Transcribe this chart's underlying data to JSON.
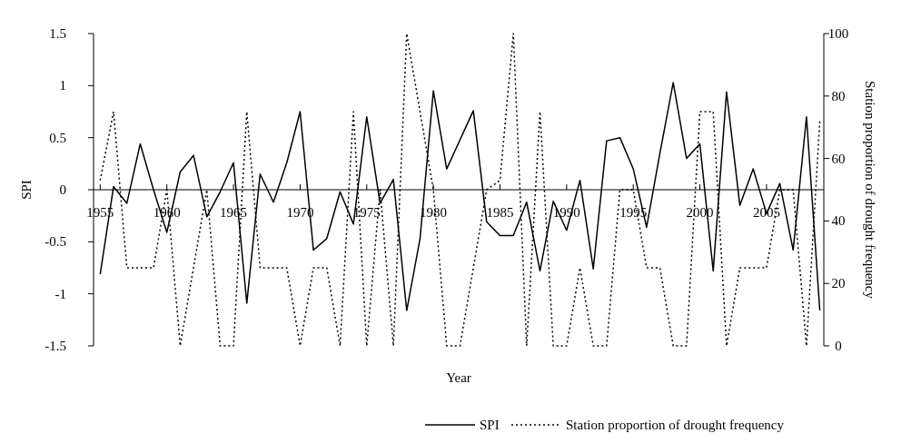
{
  "chart_data": {
    "type": "line",
    "xlabel": "Year",
    "ylabel": "SPI",
    "y2label": "Station proportion of drought frequency",
    "x": [
      1955,
      1956,
      1957,
      1958,
      1959,
      1960,
      1961,
      1962,
      1963,
      1964,
      1965,
      1966,
      1967,
      1968,
      1969,
      1970,
      1971,
      1972,
      1973,
      1974,
      1975,
      1976,
      1977,
      1978,
      1979,
      1980,
      1981,
      1982,
      1983,
      1984,
      1985,
      1986,
      1987,
      1988,
      1989,
      1990,
      1991,
      1992,
      1993,
      1994,
      1995,
      1996,
      1997,
      1998,
      1999,
      2000,
      2001,
      2002,
      2003,
      2004,
      2005,
      2006,
      2007,
      2008,
      2009
    ],
    "xlim": [
      1954.5,
      2009.3
    ],
    "xticks": [
      1955,
      1960,
      1965,
      1970,
      1975,
      1980,
      1985,
      1990,
      1995,
      2000,
      2005
    ],
    "ylim": [
      -1.5,
      1.5
    ],
    "yticks": [
      {
        "value": -1.5,
        "label": "-1.5"
      },
      {
        "value": -1,
        "label": "-1"
      },
      {
        "value": -0.5,
        "label": "-0.5"
      },
      {
        "value": 0,
        "label": "0"
      },
      {
        "value": 0.5,
        "label": "0.5"
      },
      {
        "value": 1,
        "label": "1"
      },
      {
        "value": 1.5,
        "label": "1.5"
      }
    ],
    "y2lim": [
      0,
      100
    ],
    "y2ticks": [
      0,
      20,
      40,
      60,
      80,
      100
    ],
    "series": [
      {
        "name": "SPI",
        "color": "#000000",
        "line_style": "solid",
        "values": [
          -0.81,
          0.03,
          -0.13,
          0.44,
          0,
          -0.41,
          0.17,
          0.33,
          -0.26,
          -0.02,
          0.26,
          -1.09,
          0.15,
          -0.12,
          0.26,
          0.75,
          -0.58,
          -0.47,
          -0.02,
          -0.33,
          0.7,
          -0.13,
          0.1,
          -1.16,
          -0.47,
          0.95,
          0.2,
          0.48,
          0.76,
          -0.31,
          -0.44,
          -0.44,
          -0.12,
          -0.78,
          -0.11,
          -0.39,
          0.09,
          -0.76,
          0.47,
          0.5,
          0.2,
          -0.36,
          0.35,
          1.03,
          0.3,
          0.44,
          -0.78,
          0.94,
          -0.15,
          0.2,
          -0.23,
          0.06,
          -0.58,
          0.7,
          -1.16
        ]
      },
      {
        "name": "Station proportion of drought frequency",
        "color": "#000000",
        "line_style": "dotted",
        "axis": "y2",
        "values": [
          53,
          75,
          25,
          25,
          25,
          50,
          0,
          25,
          50,
          0,
          0,
          75,
          25,
          25,
          25,
          0,
          25,
          25,
          0,
          75,
          0,
          50,
          0,
          100,
          75,
          50,
          0,
          0,
          25,
          50,
          53,
          100,
          0,
          75,
          0,
          0,
          25,
          0,
          0,
          50,
          50,
          25,
          25,
          0,
          0,
          75,
          75,
          0,
          25,
          25,
          25,
          50,
          50,
          0,
          72
        ]
      }
    ],
    "legend": "bottom"
  }
}
